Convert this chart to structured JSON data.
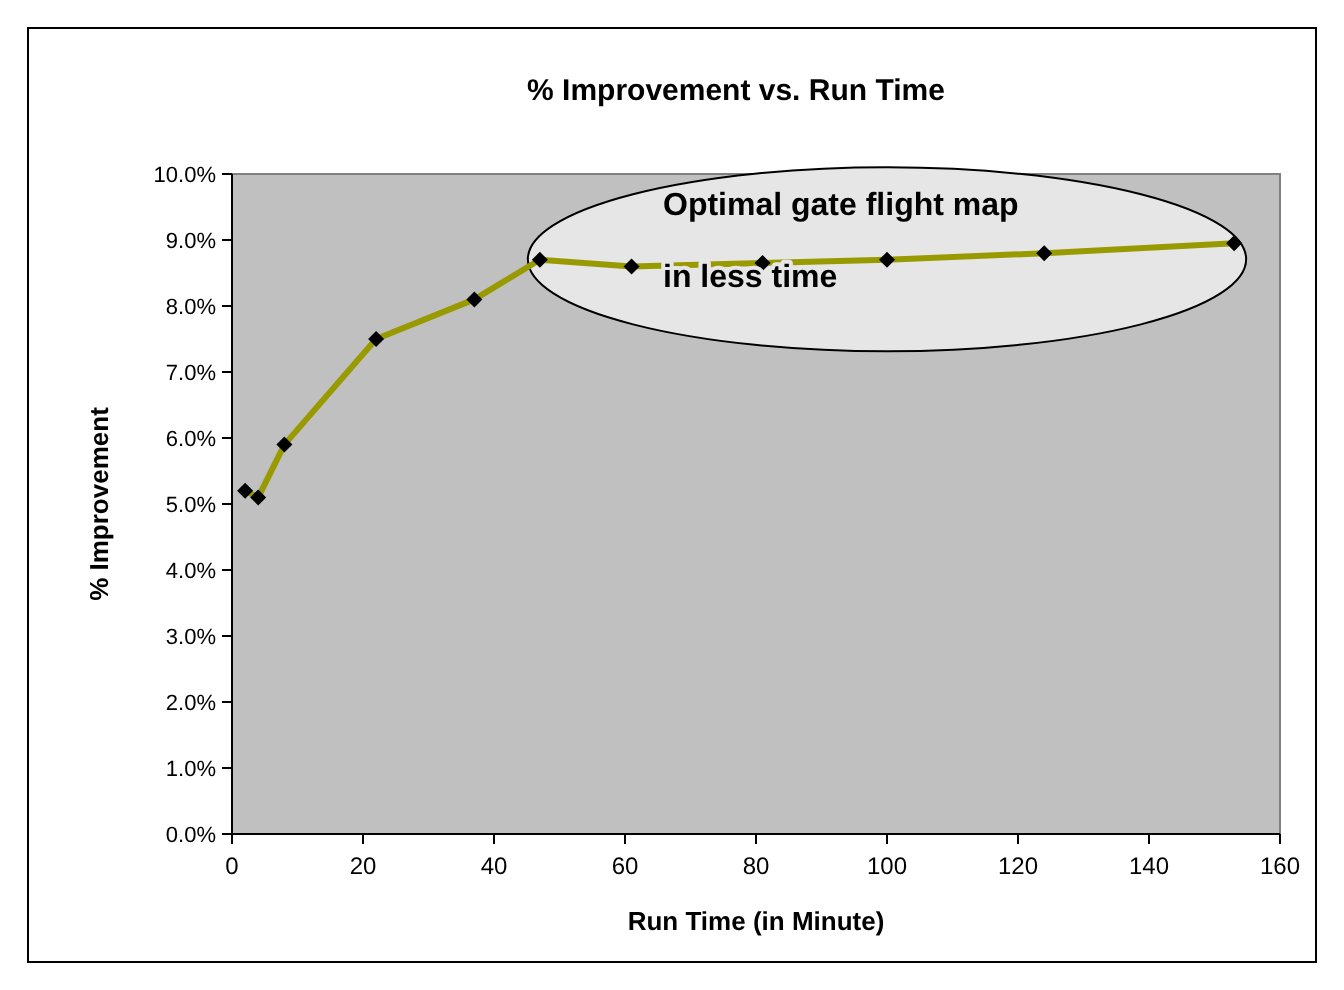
{
  "chart_data": {
    "type": "line",
    "title": "%  Improvement vs. Run Time",
    "xlabel": "Run Time (in Minute)",
    "ylabel": "% Improvement",
    "x": [
      2,
      4,
      8,
      22,
      37,
      47,
      61,
      81,
      100,
      124,
      153
    ],
    "series": [
      {
        "color": "#999900",
        "values": [
          5.2,
          5.1,
          5.9,
          7.5,
          8.1,
          8.7,
          8.6,
          8.65,
          8.7,
          8.8,
          8.95
        ]
      }
    ],
    "xlim": [
      0,
      160
    ],
    "xticks": [
      0,
      20,
      40,
      60,
      80,
      100,
      120,
      140,
      160
    ],
    "ylim": [
      0,
      10
    ],
    "yticks": [
      {
        "value": 0,
        "label": "0.0%"
      },
      {
        "value": 1,
        "label": "1.0%"
      },
      {
        "value": 2,
        "label": "2.0%"
      },
      {
        "value": 3,
        "label": "3.0%"
      },
      {
        "value": 4,
        "label": "4.0%"
      },
      {
        "value": 5,
        "label": "5.0%"
      },
      {
        "value": 6,
        "label": "6.0%"
      },
      {
        "value": 7,
        "label": "7.0%"
      },
      {
        "value": 8,
        "label": "8.0%"
      },
      {
        "value": 9,
        "label": "9.0%"
      },
      {
        "value": 10,
        "label": "10.0%"
      }
    ],
    "grid": false,
    "marker": "diamond",
    "line_style": "solid",
    "annotations": [
      "Optimal gate flight map\nin less time"
    ]
  }
}
